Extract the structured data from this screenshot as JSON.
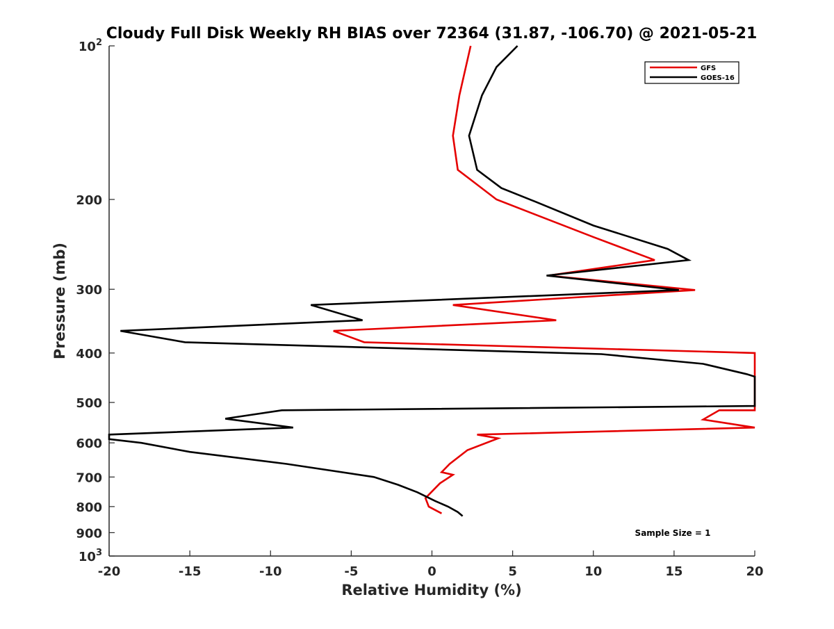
{
  "chart_data": {
    "type": "line",
    "title": "Cloudy Full Disk Weekly RH BIAS over 72364 (31.87, -106.70) @ 2021-05-21",
    "xlabel": "Relative Humidity (%)",
    "ylabel": "Pressure (mb)",
    "xlim": [
      -20,
      20
    ],
    "ylim": [
      100,
      1000
    ],
    "yscale": "log",
    "y_reversed": true,
    "grid": false,
    "legend_position": "top-right",
    "x_ticks": [
      "-20",
      "-15",
      "-10",
      "-5",
      "0",
      "5",
      "10",
      "15",
      "20"
    ],
    "y_ticks": [
      {
        "value": 100,
        "base": "10",
        "exp": "2"
      },
      {
        "value": 200,
        "label": "200"
      },
      {
        "value": 300,
        "label": "300"
      },
      {
        "value": 400,
        "label": "400"
      },
      {
        "value": 500,
        "label": "500"
      },
      {
        "value": 600,
        "label": "600"
      },
      {
        "value": 700,
        "label": "700"
      },
      {
        "value": 800,
        "label": "800"
      },
      {
        "value": 900,
        "label": "900"
      },
      {
        "value": 1000,
        "base": "10",
        "exp": "3"
      }
    ],
    "series": [
      {
        "name": "GFS",
        "color": "#e50000",
        "points": [
          [
            2.4,
            100
          ],
          [
            1.7,
            125
          ],
          [
            1.3,
            150
          ],
          [
            1.6,
            175
          ],
          [
            2.6,
            185
          ],
          [
            4.0,
            200
          ],
          [
            10.0,
            237
          ],
          [
            13.8,
            263
          ],
          [
            7.2,
            282
          ],
          [
            16.3,
            301
          ],
          [
            1.3,
            322
          ],
          [
            7.7,
            345
          ],
          [
            -6.1,
            362
          ],
          [
            -4.2,
            381
          ],
          [
            20,
            400
          ],
          [
            20,
            518
          ],
          [
            17.8,
            518
          ],
          [
            16.8,
            540
          ],
          [
            20,
            560
          ],
          [
            2.8,
            578
          ],
          [
            4.1,
            588
          ],
          [
            2.2,
            620
          ],
          [
            1.1,
            660
          ],
          [
            0.6,
            685
          ],
          [
            1.3,
            693
          ],
          [
            0.5,
            720
          ],
          [
            -0.4,
            770
          ],
          [
            -0.2,
            800
          ],
          [
            0.6,
            825
          ]
        ]
      },
      {
        "name": "GOES-16",
        "color": "#000000",
        "points": [
          [
            5.3,
            100
          ],
          [
            4.0,
            110
          ],
          [
            3.1,
            125
          ],
          [
            2.3,
            150
          ],
          [
            2.8,
            175
          ],
          [
            4.3,
            190
          ],
          [
            6.4,
            202
          ],
          [
            10.0,
            225
          ],
          [
            14.6,
            250
          ],
          [
            15.9,
            263
          ],
          [
            7.1,
            282
          ],
          [
            15.3,
            301
          ],
          [
            -7.5,
            322
          ],
          [
            -4.3,
            345
          ],
          [
            -19.3,
            362
          ],
          [
            -15.3,
            381
          ],
          [
            10.5,
            402
          ],
          [
            16.8,
            420
          ],
          [
            19.5,
            440
          ],
          [
            20,
            445
          ],
          [
            20,
            508
          ],
          [
            -9.3,
            518
          ],
          [
            -12.8,
            538
          ],
          [
            -8.6,
            560
          ],
          [
            -20,
            578
          ],
          [
            -20,
            590
          ],
          [
            -18.0,
            600
          ],
          [
            -15.0,
            625
          ],
          [
            -9.0,
            660
          ],
          [
            -3.6,
            700
          ],
          [
            -2.1,
            725
          ],
          [
            -0.9,
            750
          ],
          [
            0.2,
            780
          ],
          [
            1.0,
            800
          ],
          [
            1.6,
            820
          ],
          [
            1.9,
            835
          ]
        ]
      }
    ],
    "annotation": "Sample Size = 1"
  }
}
